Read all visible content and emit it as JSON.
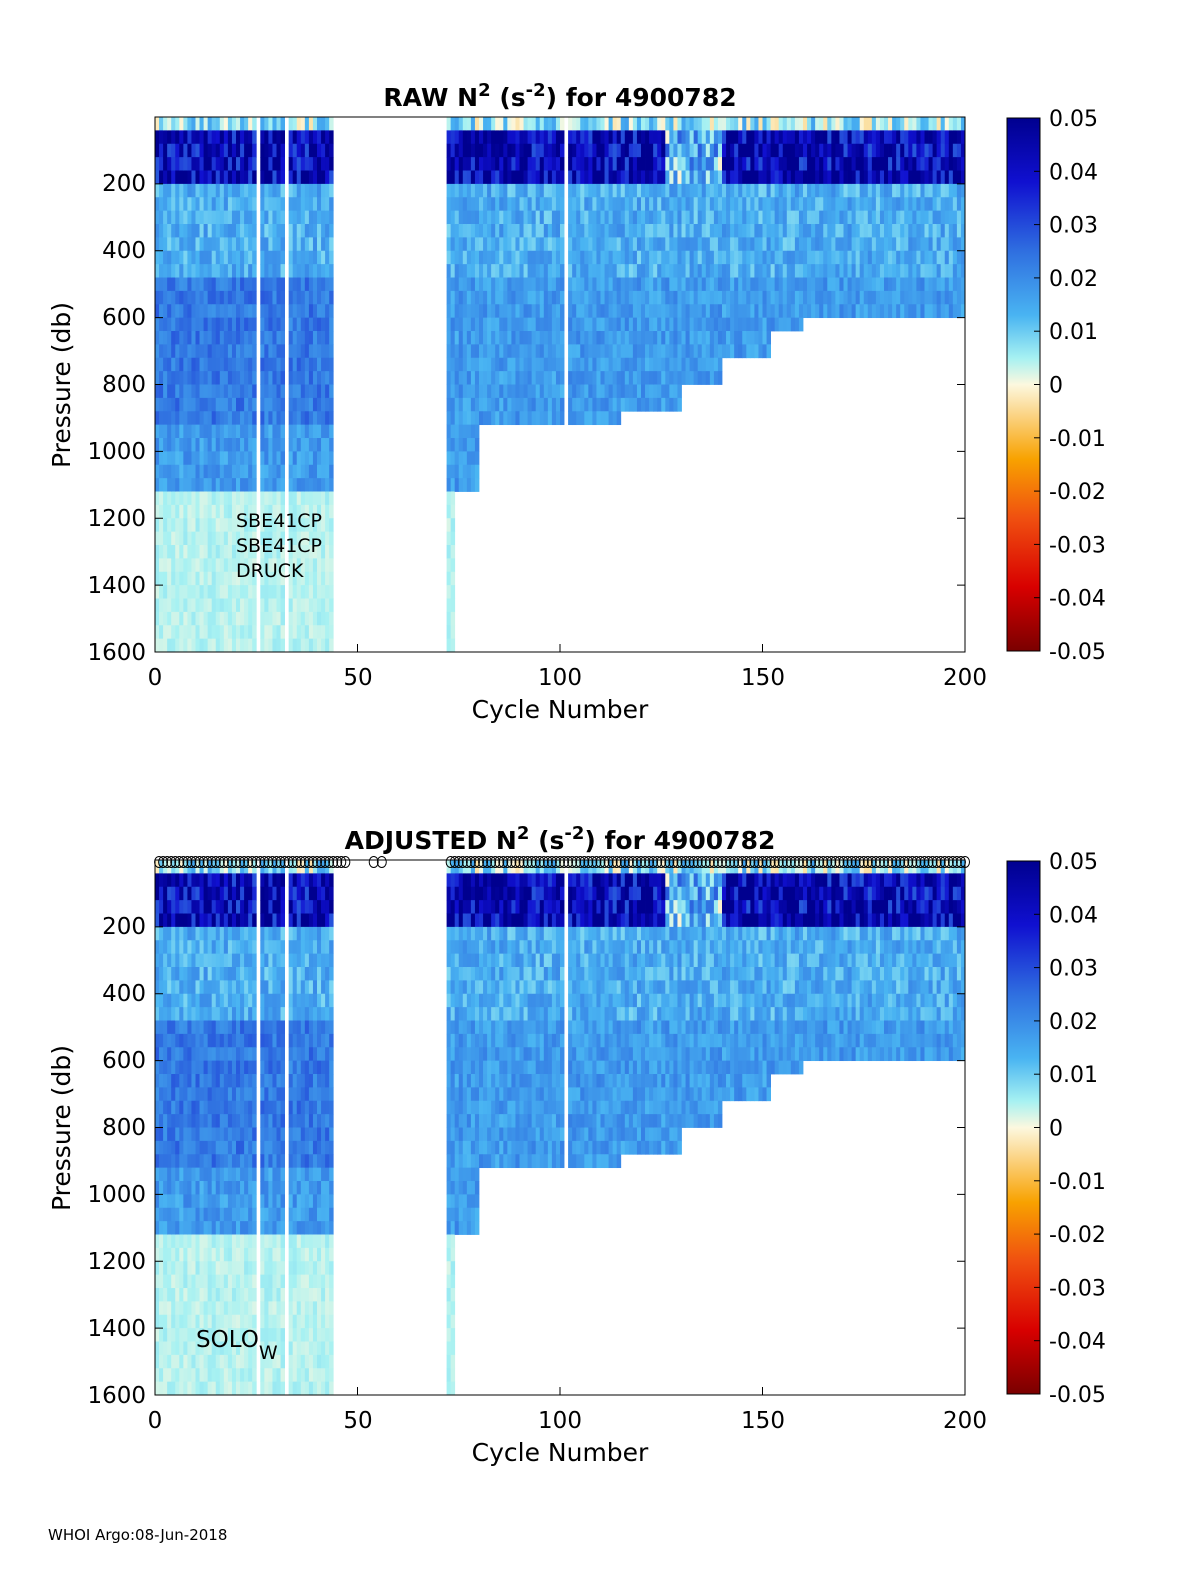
{
  "footer": "WHOI Argo:08-Jun-2018",
  "chart_data": [
    {
      "type": "heatmap",
      "title": {
        "prefix": "RAW N",
        "sup": "2",
        "mid": " (s",
        "sup2": "-2",
        "suffix": ") for 4900782"
      },
      "xlabel": "Cycle Number",
      "ylabel": "Pressure (db)",
      "xlim": [
        0,
        200
      ],
      "ylim": [
        1600,
        0
      ],
      "y_reversed": true,
      "xticks": [
        "0",
        "50",
        "100",
        "150",
        "200"
      ],
      "yticks": [
        "200",
        "400",
        "600",
        "800",
        "1000",
        "1200",
        "1400",
        "1600"
      ],
      "colorbar": {
        "range": [
          -0.05,
          0.05
        ],
        "ticks": [
          "0.05",
          "0.04",
          "0.03",
          "0.02",
          "0.01",
          "0",
          "-0.01",
          "-0.02",
          "-0.03",
          "-0.04",
          "-0.05"
        ],
        "colormap": "jet-diverging (dark red to cream to dark blue)"
      },
      "annotations": [
        "SBE41CP",
        "SBE41CP",
        "DRUCK"
      ],
      "data_gaps": [
        [
          44,
          72
        ]
      ],
      "max_pressure_by_cycle": [
        {
          "cycle": 0,
          "pressure": 1600
        },
        {
          "cycle": 44,
          "pressure": 1550
        },
        {
          "cycle": 72,
          "pressure": 1600
        },
        {
          "cycle": 74,
          "pressure": 1100
        },
        {
          "cycle": 80,
          "pressure": 900
        },
        {
          "cycle": 95,
          "pressure": 900
        },
        {
          "cycle": 115,
          "pressure": 860
        },
        {
          "cycle": 130,
          "pressure": 800
        },
        {
          "cycle": 140,
          "pressure": 700
        },
        {
          "cycle": 152,
          "pressure": 620
        },
        {
          "cycle": 160,
          "pressure": 600
        },
        {
          "cycle": 200,
          "pressure": 600
        }
      ]
    },
    {
      "type": "heatmap",
      "title": {
        "prefix": "ADJUSTED N",
        "sup": "2",
        "mid": " (s",
        "sup2": "-2",
        "suffix": ") for 4900782"
      },
      "xlabel": "Cycle Number",
      "ylabel": "Pressure (db)",
      "xlim": [
        0,
        200
      ],
      "ylim": [
        1600,
        0
      ],
      "y_reversed": true,
      "xticks": [
        "0",
        "50",
        "100",
        "150",
        "200"
      ],
      "yticks": [
        "200",
        "400",
        "600",
        "800",
        "1000",
        "1200",
        "1400",
        "1600"
      ],
      "colorbar": {
        "range": [
          -0.05,
          0.05
        ],
        "ticks": [
          "0.05",
          "0.04",
          "0.03",
          "0.02",
          "0.01",
          "0",
          "-0.01",
          "-0.02",
          "-0.03",
          "-0.04",
          "-0.05"
        ],
        "colormap": "jet-diverging (dark red to cream to dark blue)"
      },
      "annotations": [
        "SOLO",
        "W"
      ],
      "data_gaps": [
        [
          44,
          72
        ]
      ],
      "qc_markers": "open circles along top axis for cycles 1-47, 51-57, 72-200",
      "max_pressure_by_cycle": [
        {
          "cycle": 0,
          "pressure": 1600
        },
        {
          "cycle": 44,
          "pressure": 1550
        },
        {
          "cycle": 72,
          "pressure": 1600
        },
        {
          "cycle": 74,
          "pressure": 1100
        },
        {
          "cycle": 80,
          "pressure": 900
        },
        {
          "cycle": 95,
          "pressure": 900
        },
        {
          "cycle": 115,
          "pressure": 860
        },
        {
          "cycle": 130,
          "pressure": 800
        },
        {
          "cycle": 140,
          "pressure": 700
        },
        {
          "cycle": 152,
          "pressure": 620
        },
        {
          "cycle": 160,
          "pressure": 600
        },
        {
          "cycle": 200,
          "pressure": 600
        }
      ]
    }
  ]
}
